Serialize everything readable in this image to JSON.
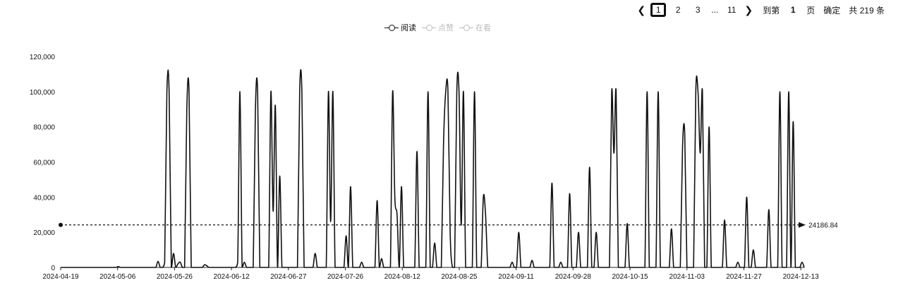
{
  "pagination": {
    "prev_icon": "chevron-left-icon",
    "next_icon": "chevron-right-icon",
    "pages": [
      "1",
      "2",
      "3"
    ],
    "active_page": "1",
    "ellipsis": "...",
    "last_page": "11",
    "jump_label": "到第",
    "jump_value": "1",
    "page_unit": "页",
    "confirm_label": "确定",
    "total_label": "共 219 条"
  },
  "legend": {
    "items": [
      {
        "label": "阅读",
        "active": true
      },
      {
        "label": "点赞",
        "active": false
      },
      {
        "label": "在看",
        "active": false
      }
    ]
  },
  "chart_data": {
    "type": "line",
    "title": "",
    "xlabel": "",
    "ylabel": "",
    "ylim": [
      0,
      120000
    ],
    "yticks": [
      "0",
      "20,000",
      "40,000",
      "60,000",
      "80,000",
      "100,000",
      "120,000"
    ],
    "xticks": [
      "2024-04-19",
      "2024-05-06",
      "2024-05-26",
      "2024-06-12",
      "2024-06-27",
      "2024-07-26",
      "2024-08-12",
      "2024-08-25",
      "2024-09-11",
      "2024-09-28",
      "2024-10-15",
      "2024-11-03",
      "2024-11-27",
      "2024-12-13"
    ],
    "average_line": {
      "value": 24186.84,
      "label": "24186.84"
    },
    "series": [
      {
        "name": "阅读",
        "smooth": true,
        "values": [
          0,
          0,
          0,
          0,
          0,
          0,
          0,
          0,
          0,
          0,
          0,
          0,
          0,
          0,
          0,
          0,
          0,
          0,
          0,
          0,
          0,
          0,
          0,
          0,
          0,
          0,
          500,
          0,
          0,
          0,
          0,
          0,
          0,
          0,
          0,
          0,
          0,
          0,
          0,
          0,
          0,
          0,
          0,
          0,
          3500,
          0,
          0,
          3000,
          100000,
          100000,
          0,
          8000,
          0,
          2000,
          3000,
          0,
          0,
          90000,
          100000,
          0,
          0,
          0,
          0,
          0,
          0,
          1500,
          1000,
          0,
          0,
          0,
          0,
          0,
          0,
          0,
          0,
          0,
          0,
          0,
          0,
          0,
          3000,
          100000,
          0,
          3000,
          0,
          0,
          0,
          0,
          90000,
          100000,
          0,
          0,
          0,
          0,
          0,
          100000,
          32000,
          92000,
          0,
          52000,
          0,
          0,
          0,
          0,
          0,
          0,
          0,
          0,
          100000,
          100000,
          0,
          0,
          0,
          0,
          0,
          8000,
          0,
          0,
          0,
          0,
          0,
          100000,
          26000,
          100000,
          0,
          0,
          0,
          0,
          0,
          18000,
          0,
          46000,
          0,
          0,
          0,
          0,
          3000,
          0,
          0,
          0,
          0,
          0,
          0,
          38000,
          0,
          5000,
          0,
          0,
          0,
          0,
          100000,
          40000,
          30000,
          0,
          46000,
          0,
          0,
          0,
          0,
          0,
          0,
          66000,
          0,
          0,
          0,
          0,
          100000,
          0,
          0,
          14000,
          0,
          0,
          0,
          70000,
          100000,
          100000,
          20000,
          0,
          0,
          100000,
          100000,
          24000,
          100000,
          0,
          0,
          0,
          0,
          100000,
          0,
          0,
          0,
          40000,
          30000,
          0,
          0,
          0,
          0,
          0,
          0,
          0,
          0,
          0,
          0,
          0,
          3000,
          0,
          0,
          20000,
          0,
          0,
          0,
          0,
          0,
          4000,
          0,
          0,
          0,
          0,
          0,
          0,
          0,
          0,
          48000,
          0,
          0,
          0,
          3000,
          0,
          0,
          0,
          42000,
          0,
          0,
          0,
          20000,
          0,
          0,
          0,
          0,
          57000,
          0,
          0,
          20000,
          0,
          0,
          0,
          0,
          0,
          0,
          100000,
          65000,
          100000,
          0,
          0,
          0,
          0,
          25000,
          0,
          0,
          0,
          0,
          0,
          0,
          0,
          0,
          100000,
          0,
          0,
          0,
          0,
          100000,
          0,
          0,
          0,
          0,
          0,
          22000,
          0,
          0,
          0,
          0,
          68000,
          76000,
          0,
          0,
          0,
          0,
          100000,
          100000,
          65000,
          100000,
          0,
          0,
          80000,
          0,
          0,
          0,
          0,
          0,
          0,
          27000,
          0,
          0,
          0,
          0,
          0,
          3000,
          0,
          0,
          0,
          40000,
          0,
          0,
          10000,
          0,
          0,
          0,
          0,
          0,
          0,
          33000,
          0,
          0,
          0,
          0,
          100000,
          0,
          0,
          0,
          100000,
          0,
          83000,
          0,
          0,
          0,
          3000,
          0
        ]
      }
    ]
  }
}
